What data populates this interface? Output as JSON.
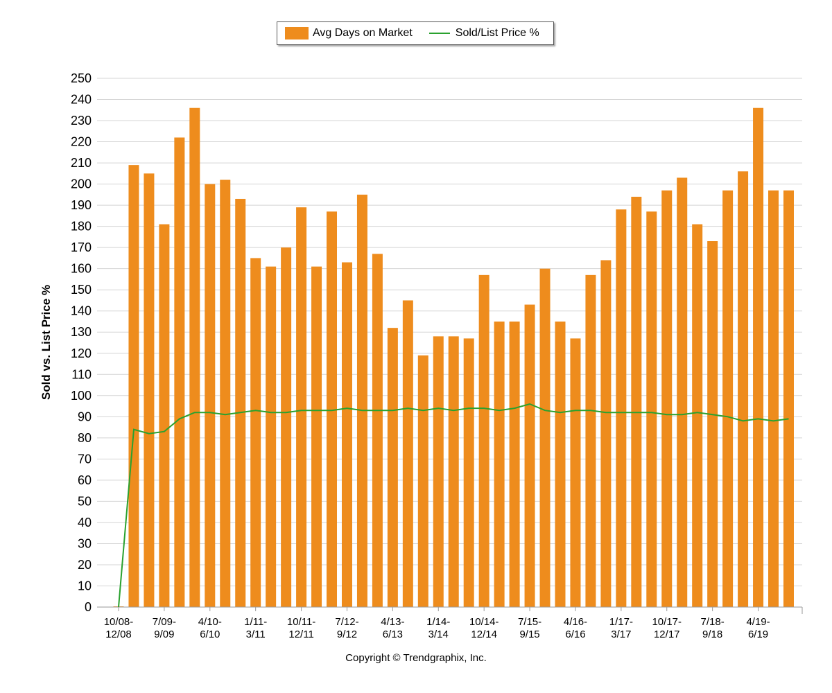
{
  "colors": {
    "bars": "#EE8C1D",
    "line": "#2AA12F",
    "grid": "#D4D4D4",
    "axis": "#999999"
  },
  "legend": {
    "bars_label": "Avg Days on Market",
    "line_label": "Sold/List Price %"
  },
  "copyright": "Copyright © Trendgraphix, Inc.",
  "chart_data": {
    "type": "bar",
    "ylabel": "Sold vs. List Price %",
    "ylim": [
      0,
      250
    ],
    "yticks": [
      0,
      10,
      20,
      30,
      40,
      50,
      60,
      70,
      80,
      90,
      100,
      110,
      120,
      130,
      140,
      150,
      160,
      170,
      180,
      190,
      200,
      210,
      220,
      230,
      240,
      250
    ],
    "grid": true,
    "legend_position": "top-center",
    "x_tick_labels": [
      {
        "index": 0,
        "line1": "10/08-",
        "line2": "12/08"
      },
      {
        "index": 3,
        "line1": "7/09-",
        "line2": "9/09"
      },
      {
        "index": 6,
        "line1": "4/10-",
        "line2": "6/10"
      },
      {
        "index": 9,
        "line1": "1/11-",
        "line2": "3/11"
      },
      {
        "index": 12,
        "line1": "10/11-",
        "line2": "12/11"
      },
      {
        "index": 15,
        "line1": "7/12-",
        "line2": "9/12"
      },
      {
        "index": 18,
        "line1": "4/13-",
        "line2": "6/13"
      },
      {
        "index": 21,
        "line1": "1/14-",
        "line2": "3/14"
      },
      {
        "index": 24,
        "line1": "10/14-",
        "line2": "12/14"
      },
      {
        "index": 27,
        "line1": "7/15-",
        "line2": "9/15"
      },
      {
        "index": 30,
        "line1": "4/16-",
        "line2": "6/16"
      },
      {
        "index": 33,
        "line1": "1/17-",
        "line2": "3/17"
      },
      {
        "index": 36,
        "line1": "10/17-",
        "line2": "12/17"
      },
      {
        "index": 39,
        "line1": "7/18-",
        "line2": "9/18"
      },
      {
        "index": 42,
        "line1": "4/19-",
        "line2": "6/19"
      }
    ],
    "series": [
      {
        "name": "Avg Days on Market",
        "type": "bar",
        "values": [
          0,
          209,
          205,
          181,
          222,
          236,
          200,
          202,
          193,
          165,
          161,
          170,
          189,
          161,
          187,
          163,
          195,
          167,
          132,
          145,
          119,
          128,
          128,
          127,
          157,
          135,
          135,
          143,
          160,
          135,
          127,
          157,
          164,
          188,
          194,
          187,
          197,
          203,
          181,
          173,
          197,
          206,
          236,
          197,
          197
        ]
      },
      {
        "name": "Sold/List Price %",
        "type": "line",
        "values": [
          0,
          84,
          82,
          83,
          89,
          92,
          92,
          91,
          92,
          93,
          92,
          92,
          93,
          93,
          93,
          94,
          93,
          93,
          93,
          94,
          93,
          94,
          93,
          94,
          94,
          93,
          94,
          96,
          93,
          92,
          93,
          93,
          92,
          92,
          92,
          92,
          91,
          91,
          92,
          91,
          90,
          88,
          89,
          88,
          89
        ]
      }
    ]
  }
}
